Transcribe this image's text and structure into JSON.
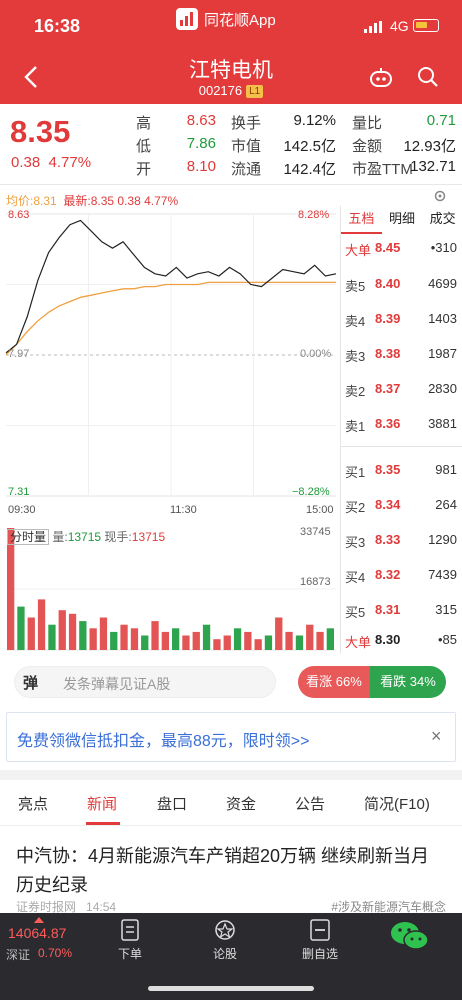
{
  "statusbar": {
    "time": "16:38",
    "app_name": "同花顺App",
    "network": "4G"
  },
  "header": {
    "stock_name": "江特电机",
    "stock_code": "002176",
    "level_badge": "L1"
  },
  "quote": {
    "price": "8.35",
    "change": "0.38",
    "change_pct": "4.77%",
    "fields": [
      {
        "label": "高",
        "value": "8.63",
        "color": "#e03a3a"
      },
      {
        "label": "换手",
        "value": "9.12%",
        "color": "#222222"
      },
      {
        "label": "量比",
        "value": "0.71",
        "color": "#1f9b3a"
      },
      {
        "label": "低",
        "value": "7.86",
        "color": "#1f9b3a"
      },
      {
        "label": "市值",
        "value": "142.5亿",
        "color": "#222222"
      },
      {
        "label": "金额",
        "value": "12.93亿",
        "color": "#222222"
      },
      {
        "label": "开",
        "value": "8.10",
        "color": "#e03a3a"
      },
      {
        "label": "流通",
        "value": "142.4亿",
        "color": "#222222"
      },
      {
        "label": "市盈TTM",
        "value": "132.71",
        "color": "#222222"
      }
    ]
  },
  "chart_header": {
    "avg_label": "均价:8.31",
    "latest_label": "最新:8.35",
    "latest_change": "0.38",
    "latest_pct": "4.77%"
  },
  "chart_axes": {
    "top_price": "8.63",
    "top_pct": "8.28%",
    "mid_price": "7.97",
    "mid_pct": "0.00%",
    "bottom_price": "7.31",
    "bottom_pct": "−8.28%",
    "time_start": "09:30",
    "time_mid": "11:30",
    "time_end": "15:00",
    "vol_max": "33745",
    "vol_mid": "16873"
  },
  "volume_header": {
    "tab": "分时量",
    "vol_label": "量:",
    "vol_value": "13715",
    "cur_label": "现手:",
    "cur_value": "13715"
  },
  "chart_data": {
    "type": "line",
    "x_range": [
      "09:30",
      "15:00"
    ],
    "ylim": [
      7.31,
      8.63
    ],
    "prev_close": 7.97,
    "series": [
      {
        "name": "均价",
        "values": [
          7.97,
          8.02,
          8.08,
          8.13,
          8.17,
          8.2,
          8.22,
          8.24,
          8.25,
          8.26,
          8.27,
          8.28,
          8.28,
          8.29,
          8.29,
          8.3,
          8.3,
          8.3,
          8.3,
          8.31,
          8.31,
          8.31,
          8.31,
          8.31,
          8.31,
          8.31,
          8.31,
          8.31,
          8.31,
          8.31,
          8.31,
          8.31
        ]
      },
      {
        "name": "最新",
        "values": [
          7.98,
          8.02,
          8.15,
          8.32,
          8.45,
          8.52,
          8.58,
          8.6,
          8.55,
          8.5,
          8.47,
          8.5,
          8.44,
          8.38,
          8.35,
          8.34,
          8.38,
          8.33,
          8.35,
          8.36,
          8.34,
          8.38,
          8.35,
          8.3,
          8.29,
          8.33,
          8.37,
          8.36,
          8.35,
          8.39,
          8.34,
          8.35
        ]
      }
    ],
    "volume": [
      33745,
      12000,
      9000,
      14000,
      7000,
      11000,
      10000,
      8000,
      6000,
      9000,
      5000,
      7000,
      6000,
      4000,
      8000,
      5000,
      6000,
      4000,
      5000,
      7000,
      3000,
      4000,
      6000,
      5000,
      3000,
      4000,
      9000,
      5000,
      4000,
      7000,
      5000,
      6000
    ]
  },
  "order_book": {
    "tabs": [
      "五档",
      "明细",
      "成交"
    ],
    "big_top": {
      "label": "大单",
      "price": "8.45",
      "volume": "•310",
      "color": "#e03a3a"
    },
    "asks": [
      {
        "label": "卖5",
        "price": "8.40",
        "volume": "4699"
      },
      {
        "label": "卖4",
        "price": "8.39",
        "volume": "1403"
      },
      {
        "label": "卖3",
        "price": "8.38",
        "volume": "1987"
      },
      {
        "label": "卖2",
        "price": "8.37",
        "volume": "2830"
      },
      {
        "label": "卖1",
        "price": "8.36",
        "volume": "3881"
      }
    ],
    "bids": [
      {
        "label": "买1",
        "price": "8.35",
        "volume": "981"
      },
      {
        "label": "买2",
        "price": "8.34",
        "volume": "264"
      },
      {
        "label": "买3",
        "price": "8.33",
        "volume": "1290"
      },
      {
        "label": "买4",
        "price": "8.32",
        "volume": "7439"
      },
      {
        "label": "买5",
        "price": "8.31",
        "volume": "315"
      }
    ],
    "big_bottom": {
      "label": "大单",
      "price": "8.30",
      "volume": "•85",
      "color": "#222222"
    }
  },
  "danmaku": {
    "icon_text": "弹",
    "placeholder": "发条弹幕见证A股",
    "bull_label": "看涨 66%",
    "bear_label": "看跌 34%"
  },
  "banner": {
    "text": "免费领微信抵扣金，最高88元，限时领>>",
    "close": "×"
  },
  "news_tabs": [
    "亮点",
    "新闻",
    "盘口",
    "资金",
    "公告",
    "简况(F10)"
  ],
  "news": {
    "title": "中汽协：4月新能源汽车产销超20万辆 继续刷新当月历史纪录",
    "source": "证券时报网",
    "time": "14:54",
    "tag": "#涉及新能源汽车概念"
  },
  "bottombar": {
    "index_value": "14064.87",
    "index_name": "深证",
    "index_pct": "0.70%",
    "buttons": [
      "下单",
      "论股",
      "删自选"
    ]
  }
}
